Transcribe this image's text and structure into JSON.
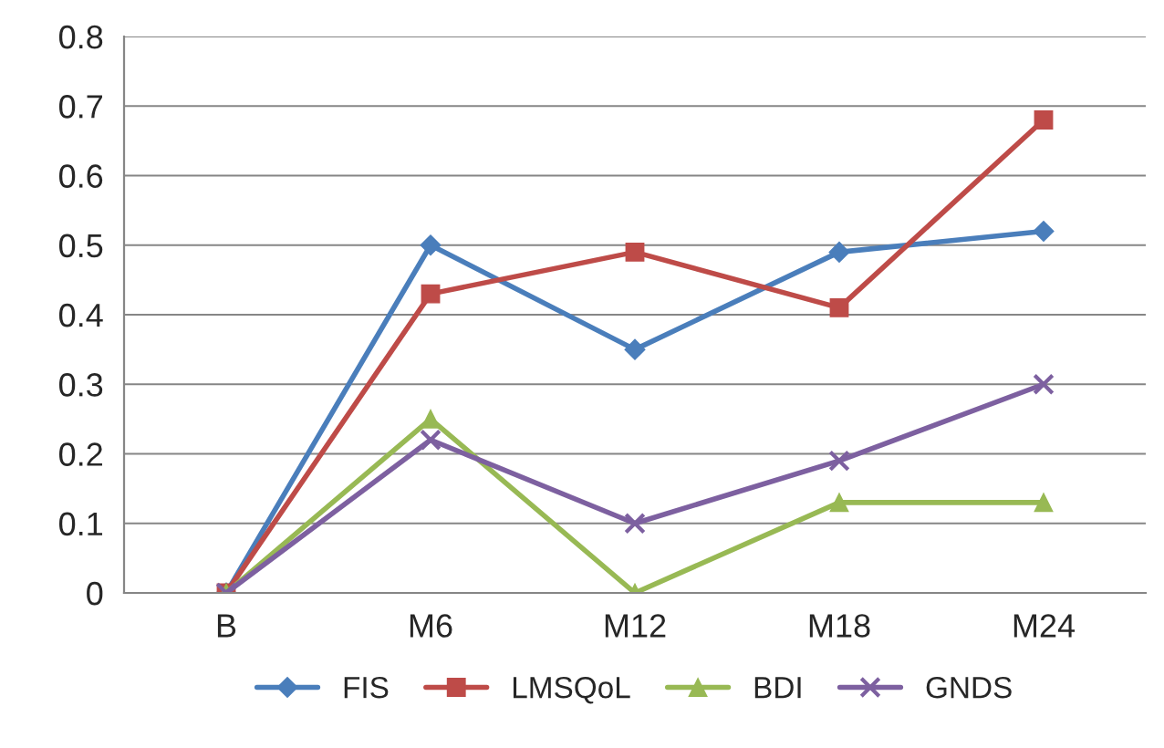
{
  "chart_data": {
    "type": "line",
    "categories": [
      "B",
      "M6",
      "M12",
      "M18",
      "M24"
    ],
    "series": [
      {
        "name": "FIS",
        "color": "#4a7ebb",
        "marker": "diamond",
        "values": [
          0,
          0.5,
          0.35,
          0.49,
          0.52
        ]
      },
      {
        "name": "LMSQoL",
        "color": "#be4b48",
        "marker": "square",
        "values": [
          0,
          0.43,
          0.49,
          0.41,
          0.68
        ]
      },
      {
        "name": "BDI",
        "color": "#98b954",
        "marker": "triangle",
        "values": [
          0,
          0.25,
          0,
          0.13,
          0.13
        ]
      },
      {
        "name": "GNDS",
        "color": "#7d60a0",
        "marker": "cross",
        "values": [
          0,
          0.22,
          0.1,
          0.19,
          0.3
        ]
      }
    ],
    "ylim": [
      0,
      0.8
    ],
    "yticks": [
      0,
      0.1,
      0.2,
      0.3,
      0.4,
      0.5,
      0.6,
      0.7,
      0.8
    ],
    "grid": "y",
    "legend": "bottom"
  }
}
